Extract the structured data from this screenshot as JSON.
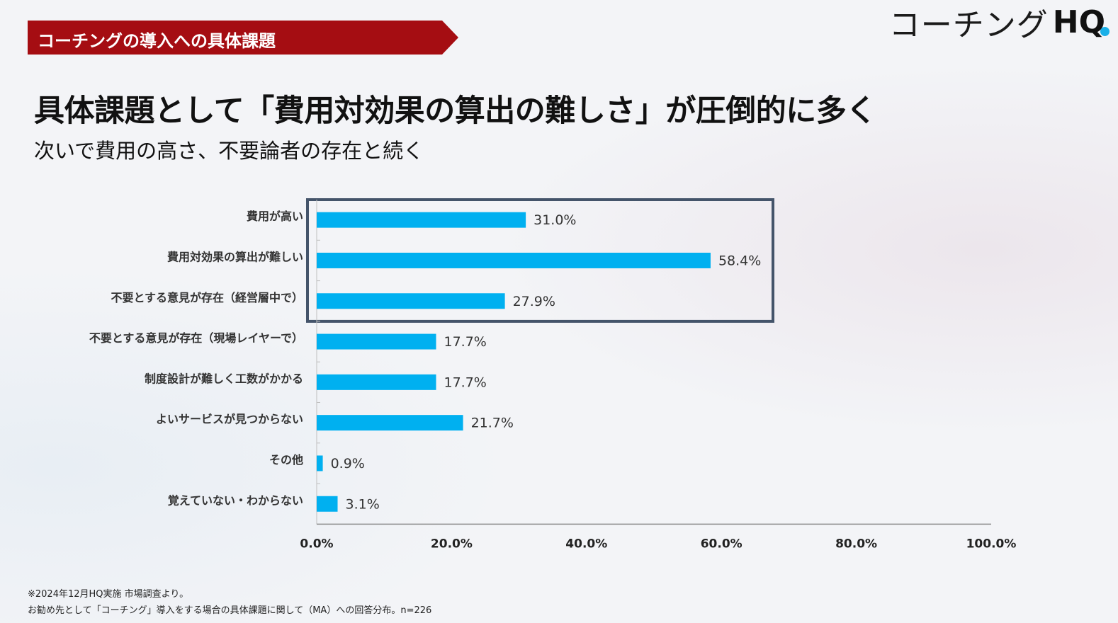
{
  "header": {
    "section_label": "コーチングの導入への具体課題",
    "logo_text": "コーチング",
    "logo_mark": "HQ"
  },
  "headline": {
    "title": "具体課題として「費用対効果の算出の難しさ」が圧倒的に多く",
    "subtitle": "次いで費用の高さ、不要論者の存在と続く"
  },
  "colors": {
    "banner": "#a50d12",
    "bar": "#00b0f0",
    "highlight_box": "#44546a"
  },
  "chart_data": {
    "type": "bar",
    "orientation": "horizontal",
    "categories": [
      "費用が高い",
      "費用対効果の算出が難しい",
      "不要とする意見が存在（経営層中で）",
      "不要とする意見が存在（現場レイヤーで）",
      "制度設計が難しく工数がかかる",
      "よいサービスが見つからない",
      "その他",
      "覚えていない・わからない"
    ],
    "values": [
      31.0,
      58.4,
      27.9,
      17.7,
      17.7,
      21.7,
      0.9,
      3.1
    ],
    "value_labels": [
      "31.0%",
      "58.4%",
      "27.9%",
      "17.7%",
      "17.7%",
      "21.7%",
      "0.9%",
      "3.1%"
    ],
    "xlim": [
      0,
      100
    ],
    "xticks": [
      0,
      20,
      40,
      60,
      80,
      100
    ],
    "xtick_labels": [
      "0.0%",
      "20.0%",
      "40.0%",
      "60.0%",
      "80.0%",
      "100.0%"
    ],
    "highlighted_categories": [
      0,
      1,
      2
    ],
    "grid": false,
    "legend": "none"
  },
  "footnotes": {
    "line1": "※2024年12月HQ実施 市場調査より。",
    "line2": "お勧め先として「コーチング」導入をする場合の具体課題に関して（MA）への回答分布。n=226"
  }
}
